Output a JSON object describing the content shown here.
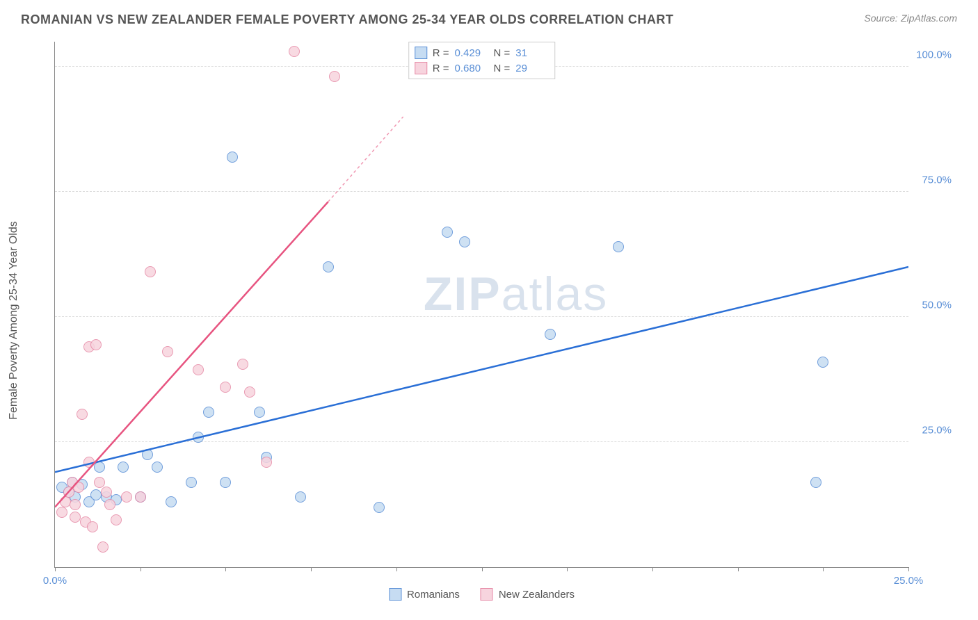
{
  "title": "ROMANIAN VS NEW ZEALANDER FEMALE POVERTY AMONG 25-34 YEAR OLDS CORRELATION CHART",
  "source_label": "Source:",
  "source_value": "ZipAtlas.com",
  "ylabel": "Female Poverty Among 25-34 Year Olds",
  "watermark_a": "ZIP",
  "watermark_b": "atlas",
  "chart": {
    "type": "scatter",
    "xlim": [
      0,
      25
    ],
    "ylim": [
      0,
      105
    ],
    "x_tick_step": 2.5,
    "x_tick_labels": {
      "0": "0.0%",
      "25": "25.0%"
    },
    "y_gridlines": [
      25,
      50,
      75,
      100
    ],
    "y_tick_labels": {
      "25": "25.0%",
      "50": "50.0%",
      "75": "75.0%",
      "100": "100.0%"
    },
    "background_color": "#ffffff",
    "grid_color": "#dddddd",
    "axis_color": "#888888",
    "tick_label_color": "#5a8fd6",
    "marker_radius": 8,
    "marker_border_width": 1.2,
    "trend_line_width": 2.5,
    "series": [
      {
        "name": "Romanians",
        "fill_color": "#c6dcf2",
        "stroke_color": "#5a8fd6",
        "line_color": "#2a6fd6",
        "R": "0.429",
        "N": "31",
        "trend": {
          "x1": 0,
          "y1": 19,
          "x2": 25,
          "y2": 60,
          "dashed": false
        },
        "points": [
          [
            0.2,
            16
          ],
          [
            0.4,
            15
          ],
          [
            0.5,
            17
          ],
          [
            0.6,
            14
          ],
          [
            0.8,
            16.5
          ],
          [
            1.0,
            13
          ],
          [
            1.2,
            14.5
          ],
          [
            1.3,
            20
          ],
          [
            1.5,
            14
          ],
          [
            1.8,
            13.5
          ],
          [
            2.0,
            20
          ],
          [
            2.5,
            14
          ],
          [
            2.7,
            22.5
          ],
          [
            3.0,
            20
          ],
          [
            3.4,
            13
          ],
          [
            4.0,
            17
          ],
          [
            4.2,
            26
          ],
          [
            4.5,
            31
          ],
          [
            5.0,
            17
          ],
          [
            5.2,
            82
          ],
          [
            6.0,
            31
          ],
          [
            6.2,
            22
          ],
          [
            7.2,
            14
          ],
          [
            8.0,
            60
          ],
          [
            9.5,
            12
          ],
          [
            11.5,
            67
          ],
          [
            12.0,
            65
          ],
          [
            14.5,
            46.5
          ],
          [
            22.5,
            41
          ],
          [
            22.3,
            17
          ],
          [
            16.5,
            64
          ]
        ]
      },
      {
        "name": "New Zealanders",
        "fill_color": "#f7d4de",
        "stroke_color": "#e68aa6",
        "line_color": "#e75480",
        "R": "0.680",
        "N": "29",
        "trend": {
          "x1": 0,
          "y1": 12,
          "x2": 8,
          "y2": 73,
          "dashed_after": true,
          "x2_dash": 10.2,
          "y2_dash": 90
        },
        "points": [
          [
            0.2,
            11
          ],
          [
            0.3,
            13
          ],
          [
            0.4,
            15
          ],
          [
            0.5,
            17
          ],
          [
            0.6,
            10
          ],
          [
            0.6,
            12.5
          ],
          [
            0.7,
            16
          ],
          [
            0.8,
            30.5
          ],
          [
            0.9,
            9
          ],
          [
            1.0,
            44
          ],
          [
            1.0,
            21
          ],
          [
            1.1,
            8
          ],
          [
            1.2,
            44.5
          ],
          [
            1.3,
            17
          ],
          [
            1.4,
            4
          ],
          [
            1.5,
            15
          ],
          [
            1.6,
            12.5
          ],
          [
            1.8,
            9.5
          ],
          [
            2.1,
            14
          ],
          [
            2.5,
            14
          ],
          [
            2.8,
            59
          ],
          [
            3.3,
            43
          ],
          [
            4.2,
            39.5
          ],
          [
            5.0,
            36
          ],
          [
            5.5,
            40.5
          ],
          [
            5.7,
            35
          ],
          [
            6.2,
            21
          ],
          [
            7.0,
            103
          ],
          [
            8.2,
            98
          ]
        ]
      }
    ]
  },
  "legend_bottom": {
    "series1_label": "Romanians",
    "series2_label": "New Zealanders"
  },
  "legend_top": {
    "r_label": "R =",
    "n_label": "N ="
  }
}
